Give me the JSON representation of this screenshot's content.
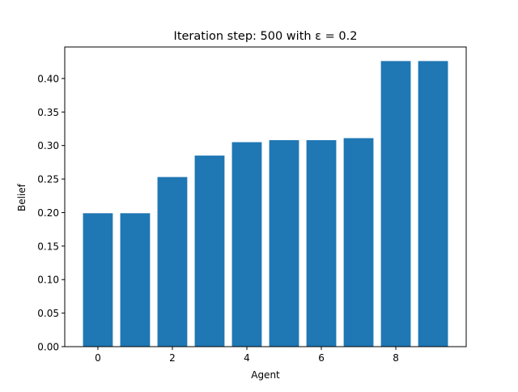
{
  "chart_data": {
    "type": "bar",
    "title": "Iteration step: 500 with ε = 0.2",
    "xlabel": "Agent",
    "ylabel": "Belief",
    "x": [
      0,
      1,
      2,
      3,
      4,
      5,
      6,
      7,
      8,
      9
    ],
    "values": [
      0.199,
      0.199,
      0.253,
      0.285,
      0.305,
      0.308,
      0.308,
      0.311,
      0.426,
      0.426
    ],
    "xlim": [
      -0.89,
      9.89
    ],
    "ylim": [
      0,
      0.447
    ],
    "xticks": [
      0,
      2,
      4,
      6,
      8
    ],
    "yticks": [
      0.0,
      0.05,
      0.1,
      0.15,
      0.2,
      0.25,
      0.3,
      0.35,
      0.4
    ],
    "xtick_labels": [
      "0",
      "2",
      "4",
      "6",
      "8"
    ],
    "ytick_labels": [
      "0.00",
      "0.05",
      "0.10",
      "0.15",
      "0.20",
      "0.25",
      "0.30",
      "0.35",
      "0.40"
    ],
    "bar_color": "#1f77b4",
    "grid": false,
    "legend": "none"
  }
}
